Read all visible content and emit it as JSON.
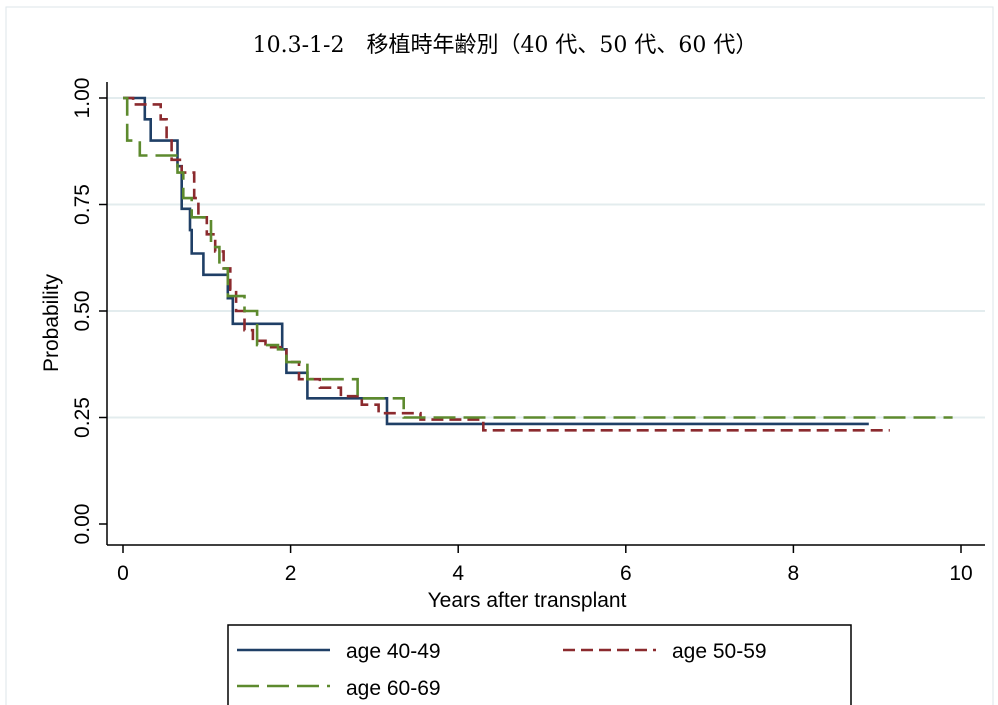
{
  "chart_data": {
    "type": "line",
    "title": "10.3-1-2　移植時年齢別（40 代、50 代、60 代）",
    "xlabel": "Years after transplant",
    "ylabel": "Probability",
    "xlim": [
      0,
      10
    ],
    "ylim": [
      0,
      1
    ],
    "xticks": [
      0,
      2,
      4,
      6,
      8,
      10
    ],
    "xtick_labels": [
      "0",
      "2",
      "4",
      "6",
      "8",
      "10"
    ],
    "yticks": [
      0,
      0.25,
      0.5,
      0.75,
      1
    ],
    "ytick_labels": [
      "0.00",
      "0.25",
      "0.50",
      "0.75",
      "1.00"
    ],
    "grid": "horizontal",
    "legend_position": "bottom",
    "series": [
      {
        "name": "age 40-49",
        "color": "#1f3f66",
        "dash": "solid",
        "points": [
          [
            0,
            1
          ],
          [
            0.26,
            1
          ],
          [
            0.26,
            0.95
          ],
          [
            0.33,
            0.95
          ],
          [
            0.33,
            0.9
          ],
          [
            0.65,
            0.9
          ],
          [
            0.65,
            0.84
          ],
          [
            0.7,
            0.84
          ],
          [
            0.7,
            0.74
          ],
          [
            0.8,
            0.74
          ],
          [
            0.8,
            0.69
          ],
          [
            0.82,
            0.69
          ],
          [
            0.82,
            0.635
          ],
          [
            0.96,
            0.635
          ],
          [
            0.96,
            0.585
          ],
          [
            1.25,
            0.585
          ],
          [
            1.25,
            0.53
          ],
          [
            1.31,
            0.53
          ],
          [
            1.31,
            0.47
          ],
          [
            1.9,
            0.47
          ],
          [
            1.9,
            0.41
          ],
          [
            1.95,
            0.41
          ],
          [
            1.95,
            0.355
          ],
          [
            2.2,
            0.355
          ],
          [
            2.2,
            0.295
          ],
          [
            3.15,
            0.295
          ],
          [
            3.15,
            0.235
          ],
          [
            8.9,
            0.235
          ]
        ]
      },
      {
        "name": "age 50-59",
        "color": "#8b2a2e",
        "dash": "12 6",
        "points": [
          [
            0,
            1
          ],
          [
            0.12,
            1
          ],
          [
            0.12,
            0.985
          ],
          [
            0.45,
            0.985
          ],
          [
            0.45,
            0.95
          ],
          [
            0.52,
            0.95
          ],
          [
            0.52,
            0.9
          ],
          [
            0.58,
            0.9
          ],
          [
            0.58,
            0.855
          ],
          [
            0.7,
            0.855
          ],
          [
            0.7,
            0.825
          ],
          [
            0.85,
            0.825
          ],
          [
            0.85,
            0.765
          ],
          [
            0.9,
            0.765
          ],
          [
            0.9,
            0.72
          ],
          [
            1.0,
            0.72
          ],
          [
            1.0,
            0.68
          ],
          [
            1.1,
            0.68
          ],
          [
            1.1,
            0.64
          ],
          [
            1.2,
            0.64
          ],
          [
            1.2,
            0.6
          ],
          [
            1.28,
            0.6
          ],
          [
            1.28,
            0.55
          ],
          [
            1.35,
            0.55
          ],
          [
            1.35,
            0.5
          ],
          [
            1.45,
            0.5
          ],
          [
            1.45,
            0.455
          ],
          [
            1.55,
            0.455
          ],
          [
            1.55,
            0.43
          ],
          [
            1.7,
            0.43
          ],
          [
            1.7,
            0.415
          ],
          [
            1.95,
            0.415
          ],
          [
            1.95,
            0.38
          ],
          [
            2.1,
            0.38
          ],
          [
            2.1,
            0.34
          ],
          [
            2.35,
            0.34
          ],
          [
            2.35,
            0.32
          ],
          [
            2.6,
            0.32
          ],
          [
            2.6,
            0.3
          ],
          [
            2.85,
            0.3
          ],
          [
            2.85,
            0.28
          ],
          [
            3.05,
            0.28
          ],
          [
            3.05,
            0.26
          ],
          [
            3.55,
            0.26
          ],
          [
            3.55,
            0.245
          ],
          [
            4.3,
            0.245
          ],
          [
            4.3,
            0.22
          ],
          [
            9.15,
            0.22
          ]
        ]
      },
      {
        "name": "age 60-69",
        "color": "#5d8a2e",
        "dash": "22 8",
        "points": [
          [
            0,
            1
          ],
          [
            0.05,
            1
          ],
          [
            0.05,
            0.9
          ],
          [
            0.2,
            0.9
          ],
          [
            0.2,
            0.865
          ],
          [
            0.65,
            0.865
          ],
          [
            0.65,
            0.825
          ],
          [
            0.72,
            0.825
          ],
          [
            0.72,
            0.765
          ],
          [
            0.82,
            0.765
          ],
          [
            0.82,
            0.72
          ],
          [
            1.05,
            0.72
          ],
          [
            1.05,
            0.65
          ],
          [
            1.15,
            0.65
          ],
          [
            1.15,
            0.6
          ],
          [
            1.25,
            0.6
          ],
          [
            1.25,
            0.535
          ],
          [
            1.45,
            0.535
          ],
          [
            1.45,
            0.5
          ],
          [
            1.6,
            0.5
          ],
          [
            1.6,
            0.42
          ],
          [
            1.85,
            0.42
          ],
          [
            1.85,
            0.41
          ],
          [
            1.95,
            0.41
          ],
          [
            1.95,
            0.38
          ],
          [
            2.2,
            0.38
          ],
          [
            2.2,
            0.34
          ],
          [
            2.8,
            0.34
          ],
          [
            2.8,
            0.295
          ],
          [
            3.35,
            0.295
          ],
          [
            3.35,
            0.25
          ],
          [
            9.9,
            0.25
          ]
        ]
      }
    ]
  }
}
